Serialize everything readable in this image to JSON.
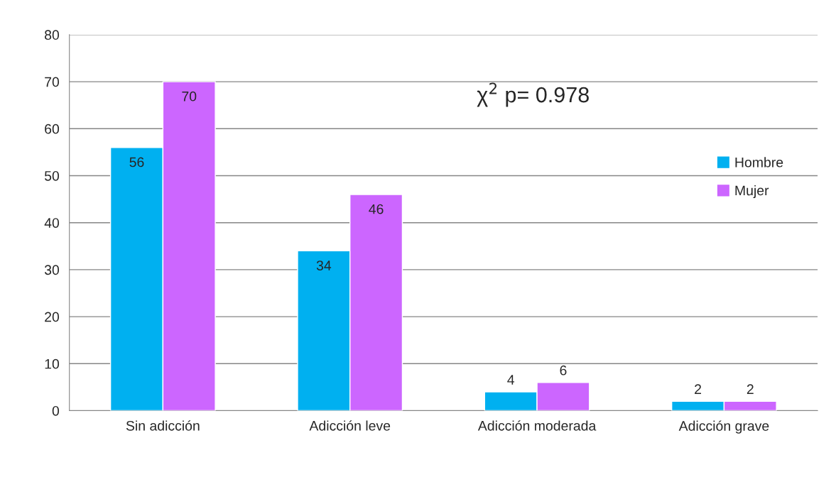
{
  "chart_data": {
    "type": "bar",
    "categories": [
      "Sin adicción",
      "Adicción leve",
      "Adicción moderada",
      "Adicción grave"
    ],
    "series": [
      {
        "name": "Hombre",
        "color": "#00b0f0",
        "values": [
          56,
          34,
          4,
          2
        ]
      },
      {
        "name": "Mujer",
        "color": "#cc66ff",
        "values": [
          70,
          46,
          6,
          2
        ]
      }
    ],
    "ylim": [
      0,
      80
    ],
    "yticks": [
      0,
      10,
      20,
      30,
      40,
      50,
      60,
      70,
      80
    ],
    "grid": "y",
    "legend": "right",
    "data_labels": true,
    "annotations": [
      "χ$^{2}$ p= 0.978"
    ]
  }
}
